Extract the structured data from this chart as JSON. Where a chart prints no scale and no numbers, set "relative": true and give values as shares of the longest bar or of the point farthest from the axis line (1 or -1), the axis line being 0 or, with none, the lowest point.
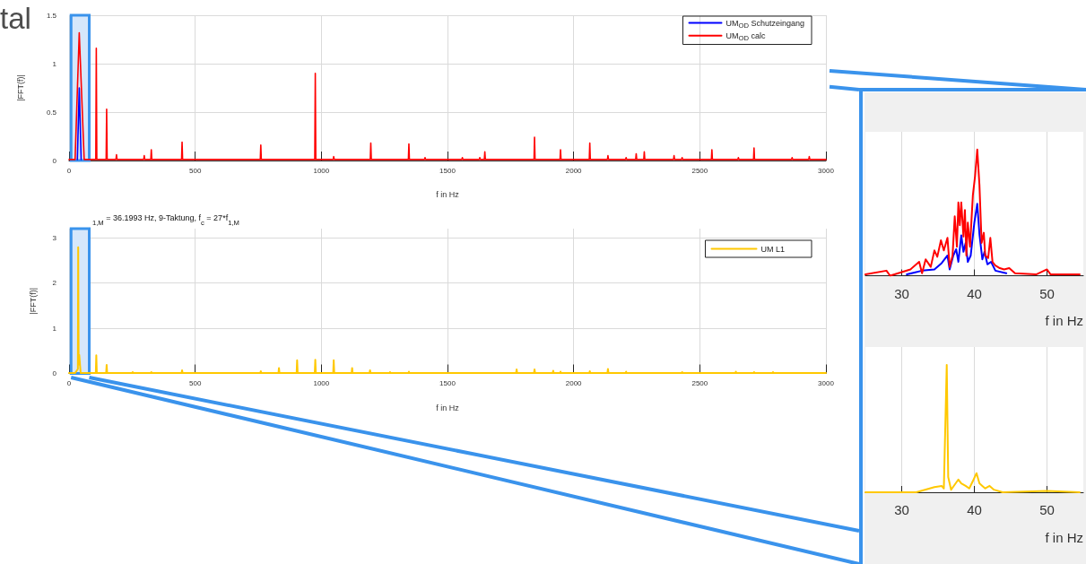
{
  "chart_data": [
    {
      "type": "line",
      "annotations": [
        "tal"
      ],
      "xlabel": "f in Hz",
      "ylabel": "|FFT(f)|",
      "xlim": [
        0,
        3000
      ],
      "xticks": [
        0,
        500,
        1000,
        1500,
        2000,
        2500,
        3000
      ],
      "ylim": [
        0,
        1.5
      ],
      "yticks": [
        0,
        0.5,
        1,
        1.5
      ],
      "grid": true,
      "legend": "top right",
      "bands": [
        {
          "axis": "x",
          "from": 8,
          "to": 80,
          "color": "#d6e7fb"
        }
      ],
      "series": [
        {
          "name": "UM$_{OD}$ Schutzeingang",
          "color": "#0000ff",
          "x": [
            33,
            40.4,
            48
          ],
          "values": [
            0.01,
            0.75,
            0.01
          ]
        },
        {
          "name": "UM$_{OD}$ calc",
          "color": "#ff0000",
          "x": [
            0,
            24,
            40.4,
            60,
            106,
            108,
            110,
            147,
            149,
            151,
            186,
            188,
            190,
            296,
            298,
            300,
            324,
            326,
            328,
            446,
            448,
            450,
            758,
            760,
            762,
            974,
            976,
            978,
            1047,
            1049,
            1051,
            1194,
            1196,
            1198,
            1345,
            1347,
            1349,
            1409,
            1411,
            1413,
            1557,
            1559,
            1561,
            1626,
            1628,
            1630,
            1646,
            1648,
            1650,
            1843,
            1845,
            1847,
            1946,
            1948,
            1950,
            2062,
            2064,
            2066,
            2134,
            2136,
            2138,
            2206,
            2208,
            2210,
            2246,
            2248,
            2250,
            2278,
            2280,
            2282,
            2396,
            2398,
            2400,
            2428,
            2430,
            2432,
            2546,
            2548,
            2550,
            2651,
            2653,
            2655,
            2713,
            2715,
            2717,
            2864,
            2866,
            2868,
            2932,
            2934,
            2936,
            3000
          ],
          "values": [
            0.01,
            0.01,
            1.32,
            0.01,
            0.01,
            1.16,
            0.01,
            0.01,
            0.53,
            0.01,
            0.01,
            0.06,
            0.01,
            0.01,
            0.05,
            0.01,
            0.01,
            0.11,
            0.01,
            0.01,
            0.19,
            0.01,
            0.01,
            0.16,
            0.01,
            0.01,
            0.9,
            0.01,
            0.01,
            0.04,
            0.01,
            0.01,
            0.18,
            0.01,
            0.01,
            0.17,
            0.01,
            0.01,
            0.03,
            0.01,
            0.01,
            0.03,
            0.01,
            0.01,
            0.03,
            0.01,
            0.01,
            0.09,
            0.01,
            0.01,
            0.24,
            0.01,
            0.01,
            0.11,
            0.01,
            0.01,
            0.18,
            0.01,
            0.01,
            0.05,
            0.01,
            0.01,
            0.03,
            0.01,
            0.01,
            0.07,
            0.01,
            0.01,
            0.09,
            0.01,
            0.01,
            0.05,
            0.01,
            0.01,
            0.03,
            0.01,
            0.01,
            0.11,
            0.01,
            0.01,
            0.03,
            0.01,
            0.01,
            0.13,
            0.01,
            0.01,
            0.03,
            0.01,
            0.01,
            0.04,
            0.01,
            0.01
          ]
        }
      ]
    },
    {
      "type": "line",
      "title": "$_{1,M}$ = 36.1993 Hz, 9-Taktung, f$_{c}$ = 27*f$_{1,M}$",
      "xlabel": "f in Hz",
      "ylabel": "|FFT(f)|",
      "xlim": [
        0,
        3000
      ],
      "xticks": [
        0,
        500,
        1000,
        1500,
        2000,
        2500,
        3000
      ],
      "ylim": [
        0,
        3.2
      ],
      "yticks": [
        0,
        1,
        2,
        3
      ],
      "grid": true,
      "legend": "top right",
      "bands": [
        {
          "axis": "x",
          "from": 8,
          "to": 80,
          "color": "#d6e7fb"
        }
      ],
      "series": [
        {
          "name": "UM L1",
          "color": "#ffc800",
          "x": [
            0,
            24,
            35,
            36.2,
            38,
            40.4,
            46,
            60,
            106,
            108,
            110,
            147,
            149,
            151,
            250,
            252,
            254,
            324,
            326,
            328,
            446,
            448,
            450,
            758,
            760,
            762,
            830,
            832,
            834,
            902,
            904,
            906,
            974,
            976,
            978,
            1047,
            1049,
            1051,
            1120,
            1122,
            1124,
            1191,
            1193,
            1195,
            1270,
            1272,
            1274,
            1345,
            1347,
            1349,
            1772,
            1774,
            1776,
            1843,
            1845,
            1847,
            1917,
            1919,
            1921,
            1946,
            1948,
            1950,
            2062,
            2064,
            2066,
            2134,
            2136,
            2138,
            2206,
            2208,
            2210,
            2428,
            2430,
            2432,
            2641,
            2643,
            2645,
            2713,
            2715,
            2717,
            2788,
            2790,
            2792,
            3000
          ],
          "values": [
            0.01,
            0.01,
            0.1,
            2.79,
            0.2,
            0.41,
            0.01,
            0.01,
            0.01,
            0.4,
            0.01,
            0.01,
            0.19,
            0.01,
            0.01,
            0.03,
            0.01,
            0.01,
            0.03,
            0.01,
            0.01,
            0.07,
            0.01,
            0.01,
            0.05,
            0.01,
            0.01,
            0.12,
            0.01,
            0.01,
            0.29,
            0.01,
            0.01,
            0.3,
            0.01,
            0.01,
            0.29,
            0.01,
            0.01,
            0.12,
            0.01,
            0.01,
            0.07,
            0.01,
            0.01,
            0.03,
            0.01,
            0.01,
            0.04,
            0.01,
            0.01,
            0.09,
            0.01,
            0.01,
            0.09,
            0.01,
            0.01,
            0.06,
            0.01,
            0.01,
            0.04,
            0.01,
            0.01,
            0.05,
            0.01,
            0.01,
            0.1,
            0.01,
            0.01,
            0.04,
            0.01,
            0.01,
            0.03,
            0.01,
            0.01,
            0.04,
            0.01,
            0.01,
            0.03,
            0.01,
            0.01,
            0.03,
            0.01,
            0.01
          ]
        }
      ]
    },
    {
      "type": "line",
      "relative": true,
      "xlabel": "f in Hz",
      "xlim": [
        25,
        55
      ],
      "xticks": [
        30,
        40,
        50
      ],
      "grid": "x",
      "series": [
        {
          "color": "#0000ff",
          "x": [
            30.7,
            32.8,
            34.5,
            35.5,
            36.3,
            36.6,
            37.1,
            37.5,
            37.8,
            38.2,
            38.5,
            38.8,
            39.1,
            39.5,
            40.0,
            40.4,
            40.7,
            41.1,
            41.4,
            41.8,
            42.3,
            42.9,
            44.4
          ],
          "values": [
            0.01,
            0.04,
            0.05,
            0.1,
            0.16,
            0.05,
            0.16,
            0.21,
            0.11,
            0.32,
            0.19,
            0.26,
            0.11,
            0.16,
            0.42,
            0.57,
            0.33,
            0.13,
            0.19,
            0.09,
            0.11,
            0.04,
            0.02
          ]
        },
        {
          "color": "#ff0000",
          "x": [
            25,
            27.9,
            28.4,
            31.2,
            32.4,
            32.8,
            33.3,
            34.0,
            34.5,
            34.9,
            35.4,
            35.8,
            36.3,
            36.6,
            37.0,
            37.3,
            37.6,
            37.8,
            38.0,
            38.2,
            38.5,
            38.7,
            38.9,
            39.1,
            39.4,
            39.8,
            40.1,
            40.4,
            40.7,
            41.0,
            41.3,
            41.5,
            41.9,
            42.2,
            42.5,
            42.9,
            43.5,
            44.1,
            44.8,
            45.6,
            48.5,
            50.0,
            50.5,
            54.5
          ],
          "values": [
            0.01,
            0.04,
            0,
            0.05,
            0.11,
            0.02,
            0.13,
            0.07,
            0.2,
            0.15,
            0.28,
            0.2,
            0.3,
            0.07,
            0.16,
            0.47,
            0.23,
            0.58,
            0.4,
            0.58,
            0.31,
            0.52,
            0.16,
            0.42,
            0.23,
            0.64,
            0.79,
            1,
            0.72,
            0.26,
            0.34,
            0.16,
            0.14,
            0.3,
            0.11,
            0.08,
            0.06,
            0.05,
            0.06,
            0.02,
            0.01,
            0.05,
            0.01,
            0.01
          ]
        }
      ]
    },
    {
      "type": "line",
      "relative": true,
      "xlabel": "f in Hz",
      "xlim": [
        25,
        55
      ],
      "xticks": [
        30,
        40,
        50
      ],
      "grid": "x",
      "series": [
        {
          "color": "#ffc800",
          "x": [
            25,
            32.0,
            34.5,
            35.5,
            35.8,
            36.2,
            36.4,
            36.8,
            37.3,
            37.8,
            38.2,
            38.8,
            39.3,
            39.9,
            40.3,
            40.7,
            41.1,
            41.5,
            42.1,
            42.7,
            43.9,
            50.0,
            54.5
          ],
          "values": [
            0,
            0,
            0.04,
            0.05,
            0.03,
            1,
            0.12,
            0.02,
            0.06,
            0.1,
            0.07,
            0.05,
            0.03,
            0.1,
            0.15,
            0.07,
            0.05,
            0.03,
            0.05,
            0.02,
            0,
            0.01,
            0
          ]
        }
      ]
    }
  ]
}
